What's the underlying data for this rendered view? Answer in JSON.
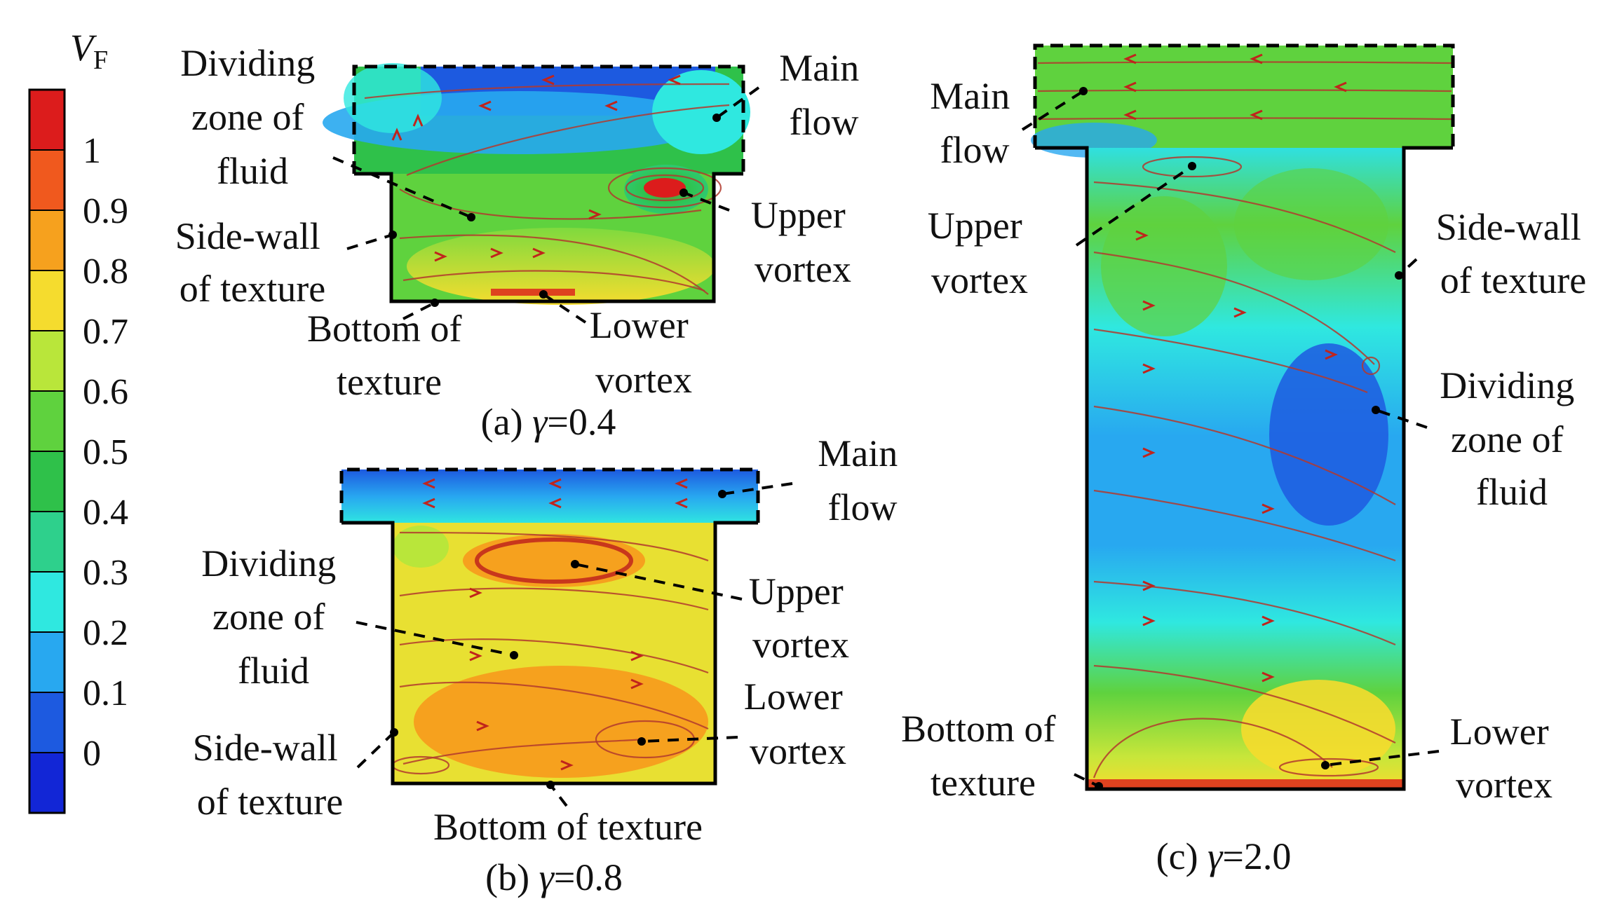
{
  "colorbar": {
    "title_var": "V",
    "title_sub": "F",
    "ticks": [
      "1",
      "0.9",
      "0.8",
      "0.7",
      "0.6",
      "0.5",
      "0.4",
      "0.3",
      "0.2",
      "0.1",
      "0"
    ],
    "colors": [
      "#dc1c1c",
      "#f0591e",
      "#f6a11e",
      "#f5dc2e",
      "#b9e63a",
      "#5fd23e",
      "#2fc14a",
      "#2ed08c",
      "#2fe8e0",
      "#28a8f0",
      "#1d5ae0",
      "#1226d6"
    ]
  },
  "panels": [
    {
      "caption_prefix": "(a) ",
      "caption_symbol": "γ",
      "caption_value": "=0.4",
      "labels": {
        "dividing_zone": [
          "Dividing",
          "zone of",
          "fluid"
        ],
        "main_flow": [
          "Main",
          "flow"
        ],
        "upper_vortex": [
          "Upper",
          "vortex"
        ],
        "side_wall": [
          "Side-wall",
          "of texture"
        ],
        "bottom": [
          "Bottom of",
          "texture"
        ],
        "lower_vortex": [
          "Lower",
          "vortex"
        ]
      }
    },
    {
      "caption_prefix": "(b) ",
      "caption_symbol": "γ",
      "caption_value": "=0.8",
      "labels": {
        "main_flow": [
          "Main",
          "flow"
        ],
        "dividing_zone": [
          "Dividing",
          "zone of",
          "fluid"
        ],
        "upper_vortex": [
          "Upper",
          "vortex"
        ],
        "lower_vortex": [
          "Lower",
          "vortex"
        ],
        "side_wall": [
          "Side-wall",
          "of texture"
        ],
        "bottom": [
          "Bottom of texture"
        ]
      }
    },
    {
      "caption_prefix": "(c) ",
      "caption_symbol": "γ",
      "caption_value": "=2.0",
      "labels": {
        "main_flow": [
          "Main",
          "flow"
        ],
        "upper_vortex": [
          "Upper",
          "vortex"
        ],
        "side_wall": [
          "Side-wall",
          "of texture"
        ],
        "dividing_zone": [
          "Dividing",
          "zone of",
          "fluid"
        ],
        "bottom": [
          "Bottom of",
          "texture"
        ],
        "lower_vortex": [
          "Lower",
          "vortex"
        ]
      }
    }
  ]
}
